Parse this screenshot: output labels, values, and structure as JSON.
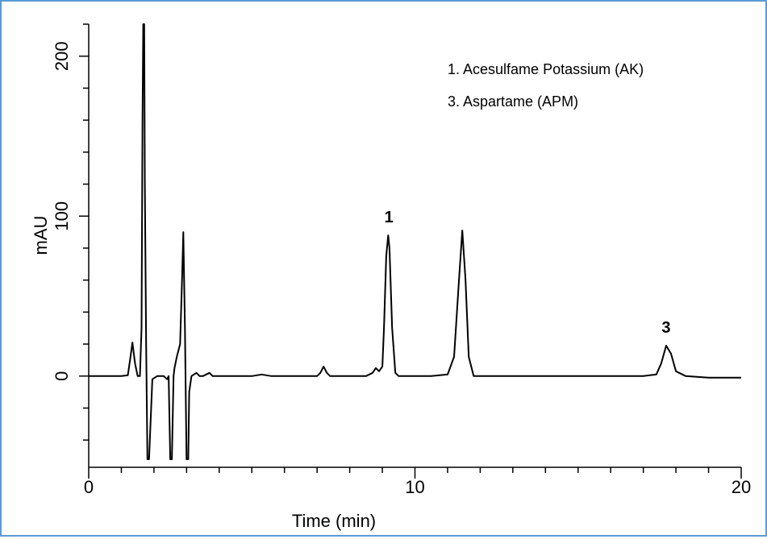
{
  "chart_data": {
    "type": "line",
    "xlabel": "Time (min)",
    "ylabel": "mAU",
    "xlim": [
      0,
      20
    ],
    "ylim": [
      -52,
      220
    ],
    "x_ticks": [
      0,
      10,
      20
    ],
    "x_minor_step": 1,
    "y_ticks": [
      0,
      100,
      200
    ],
    "y_minor_step": 20,
    "legend": [
      "1. Acesulfame Potassium (AK)",
      "3. Aspartame (APM)"
    ],
    "legend_position": "top-right",
    "peak_labels": [
      {
        "text": "1",
        "x": 9.2,
        "y": 91
      },
      {
        "text": "3",
        "x": 17.7,
        "y": 22
      }
    ],
    "series": [
      {
        "color": "#000000",
        "x": [
          0,
          1.0,
          1.2,
          1.28,
          1.34,
          1.42,
          1.5,
          1.57,
          1.62,
          1.65,
          1.67,
          1.7,
          1.72,
          1.76,
          1.8,
          1.85,
          1.95,
          2.1,
          2.3,
          2.4,
          2.45,
          2.5,
          2.55,
          2.6,
          2.63,
          2.7,
          2.8,
          2.86,
          2.9,
          2.95,
          3.0,
          3.05,
          3.08,
          3.15,
          3.3,
          3.4,
          3.5,
          3.6,
          3.7,
          3.8,
          3.9,
          4.0,
          4.5,
          5.0,
          5.3,
          5.6,
          6.0,
          6.5,
          7.0,
          7.1,
          7.2,
          7.3,
          7.4,
          7.6,
          8.0,
          8.5,
          8.7,
          8.8,
          8.9,
          9.0,
          9.05,
          9.12,
          9.18,
          9.22,
          9.3,
          9.4,
          9.5,
          9.6,
          10.0,
          10.5,
          11.0,
          11.2,
          11.35,
          11.45,
          11.55,
          11.65,
          11.8,
          12.0,
          13.0,
          14.0,
          15.0,
          16.0,
          17.0,
          17.4,
          17.55,
          17.7,
          17.85,
          18.0,
          18.3,
          19.0,
          20.0
        ],
        "y": [
          0,
          0,
          0.5,
          12,
          21,
          8,
          0,
          0,
          30,
          160,
          220,
          220,
          120,
          20,
          -52,
          -52,
          -2,
          0,
          0,
          -2,
          0,
          -52,
          -52,
          0,
          5,
          12,
          20,
          60,
          90,
          30,
          -52,
          -52,
          -10,
          0,
          2,
          0,
          0,
          1,
          2,
          0,
          0,
          0,
          0,
          0,
          1,
          0,
          0,
          0,
          0,
          2,
          6,
          2,
          0,
          0,
          0,
          0,
          2,
          5,
          3,
          6,
          30,
          75,
          88,
          80,
          30,
          2,
          0,
          0,
          0,
          0,
          1,
          12,
          60,
          91,
          60,
          12,
          0,
          0,
          0,
          0,
          0,
          0,
          0,
          1,
          8,
          19,
          14,
          3,
          0,
          -1,
          -1
        ]
      }
    ]
  }
}
